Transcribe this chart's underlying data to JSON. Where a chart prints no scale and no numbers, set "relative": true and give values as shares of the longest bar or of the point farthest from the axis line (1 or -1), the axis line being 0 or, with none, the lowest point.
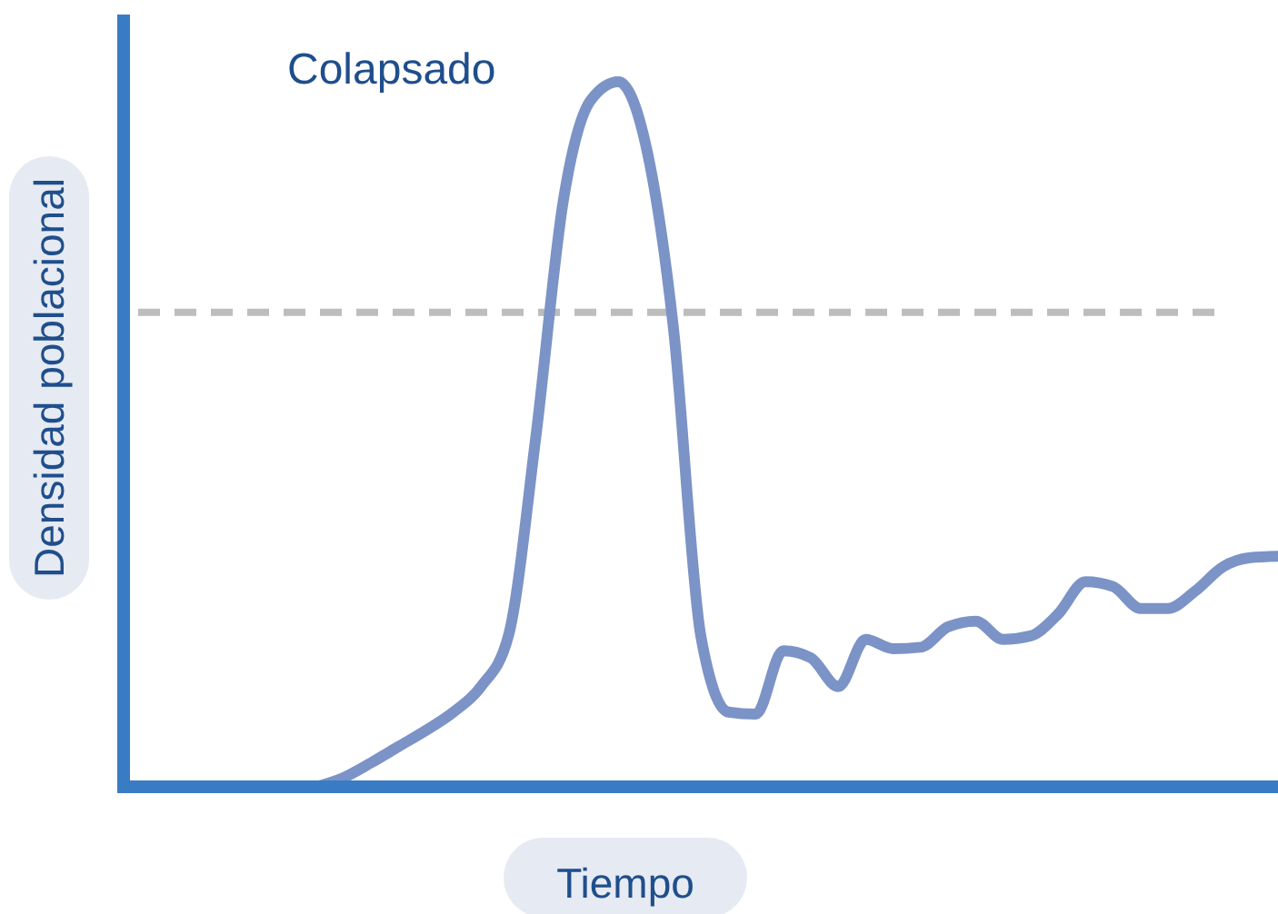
{
  "chart_data": {
    "type": "line",
    "relative": true,
    "xlabel": "Tiempo",
    "ylabel": "Densidad poblacional",
    "annotations": [
      "Colapsado"
    ],
    "categories": [
      null,
      null,
      null,
      null,
      null,
      null,
      null,
      null,
      null,
      null,
      null,
      null,
      null,
      null,
      null,
      null,
      null,
      null,
      null,
      null,
      null,
      null,
      null,
      null,
      null,
      null,
      null,
      null,
      null,
      null,
      null,
      null,
      null,
      null,
      null,
      null,
      null,
      null,
      null,
      null,
      null,
      null,
      null
    ],
    "series": [
      {
        "color": "#7b93c6",
        "values": [
          null,
          null,
          null,
          null,
          null,
          null,
          null,
          0,
          0.013,
          0.034,
          0.057,
          0.08,
          0.106,
          0.142,
          0.214,
          0.497,
          0.832,
          0.974,
          1,
          0.91,
          0.652,
          0.214,
          0.106,
          0.103,
          0.193,
          0.183,
          0.142,
          0.209,
          0.196,
          0.198,
          0.227,
          0.235,
          0.209,
          0.214,
          0.245,
          0.291,
          0.284,
          0.253,
          0.253,
          0.278,
          0.312,
          0.325,
          0.327
        ]
      }
    ],
    "ref_lines": [
      {
        "axis": "y",
        "value": 0.673,
        "color": "#bdbdbd",
        "line_style": "dashed"
      }
    ],
    "line_style": "solid"
  }
}
